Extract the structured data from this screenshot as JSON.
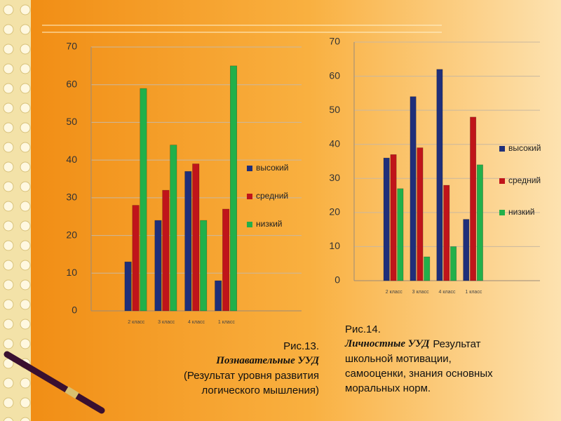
{
  "chart_data": [
    {
      "type": "bar",
      "categories": [
        null,
        "2 класс",
        "3 класс",
        "4 класс",
        "1 класс",
        null,
        null
      ],
      "series": [
        {
          "name": "высокий",
          "color": "#1f2f7a",
          "values": [
            null,
            13,
            24,
            37,
            8,
            null,
            null
          ]
        },
        {
          "name": "средний",
          "color": "#c0141a",
          "values": [
            null,
            28,
            32,
            39,
            27,
            null,
            null
          ]
        },
        {
          "name": "низкий",
          "color": "#22b04a",
          "values": [
            null,
            59,
            44,
            24,
            65,
            null,
            null
          ]
        }
      ],
      "ylim": [
        0,
        70
      ],
      "yticks": [
        0,
        10,
        20,
        30,
        40,
        50,
        60,
        70
      ],
      "grid": true,
      "legend": "right",
      "caption": [
        "Рис.13.",
        "Познавательные УУД",
        "(Результат уровня развития",
        "логического мышления)"
      ]
    },
    {
      "type": "bar",
      "categories": [
        null,
        "2 класс",
        "3 класс",
        "4 класс",
        "1 класс",
        null,
        null
      ],
      "series": [
        {
          "name": "высокий",
          "color": "#1f2f7a",
          "values": [
            null,
            36,
            54,
            62,
            18,
            null,
            null
          ]
        },
        {
          "name": "средний",
          "color": "#c0141a",
          "values": [
            null,
            37,
            39,
            28,
            48,
            null,
            null
          ]
        },
        {
          "name": "низкий",
          "color": "#22b04a",
          "values": [
            null,
            27,
            7,
            10,
            34,
            null,
            null
          ]
        }
      ],
      "ylim": [
        0,
        70
      ],
      "yticks": [
        0,
        10,
        20,
        30,
        40,
        50,
        60,
        70
      ],
      "grid": true,
      "legend": "right",
      "caption": [
        "Рис.14.",
        "Личностные УУД",
        "Результат",
        "школьной мотивации,",
        "самооценки, знания основных",
        "моральных норм."
      ]
    }
  ]
}
